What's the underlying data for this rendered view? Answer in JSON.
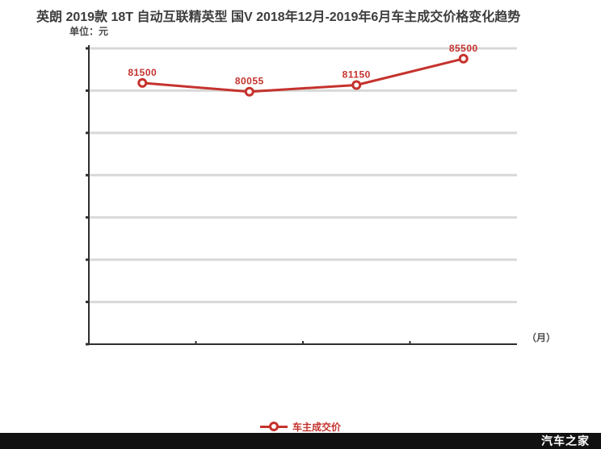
{
  "page": {
    "background": "#ffffff"
  },
  "header": {
    "title": "英朗 2019款 18T 自动互联精英型 国V 2018年12月-2019年6月车主成交价格变化趋势",
    "unit_label": "单位：元"
  },
  "chart_data": {
    "type": "line",
    "series": [
      {
        "name": "车主成交价",
        "values": [
          81500,
          80055,
          81150,
          85500
        ],
        "color": "#c5322d"
      }
    ],
    "point_labels": [
      "81500",
      "80055",
      "81150",
      "85500"
    ],
    "title": "英朗 2019款 18T 自动互联精英型 国V 2018年12月-2019年6月车主成交价格变化趋势",
    "xlabel": "（月）",
    "ylabel": "单位：元",
    "ylim": [
      38400,
      87200
    ],
    "x_tick_labels_visible": false,
    "y_tick_labels_visible": false,
    "gridline_count": 7,
    "grid_color": "#d8d8d8",
    "axis_color": "#2f2f2f",
    "grid_on": true,
    "legend": {
      "label": "车主成交价",
      "position": "bottom-center",
      "color": "#c5322d"
    }
  },
  "footer": {
    "brand": "汽车之家",
    "bar_color": "#111111",
    "text_color": "#ffffff"
  }
}
